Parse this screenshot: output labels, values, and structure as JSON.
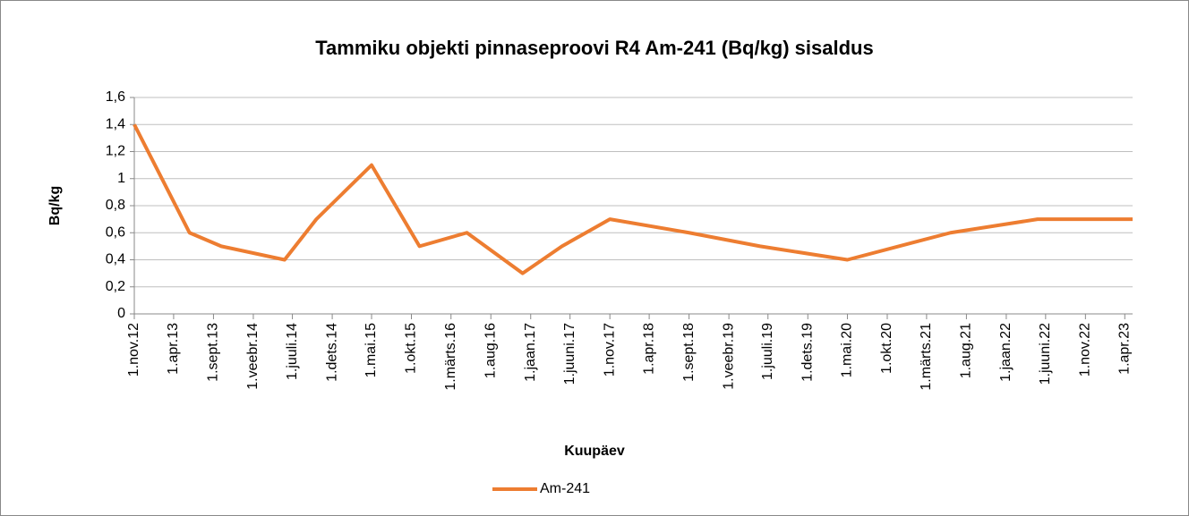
{
  "chart_data": {
    "type": "line",
    "title": "Tammiku objekti pinnaseproovi R4 Am-241 (Bq/kg) sisaldus",
    "xlabel": "Kuupäev",
    "ylabel": "Bq/kg",
    "x": [
      "2012-11-01",
      "2013-06-01",
      "2013-10-01",
      "2014-06-01",
      "2014-10-01",
      "2015-05-01",
      "2015-11-01",
      "2016-05-01",
      "2016-12-01",
      "2017-05-01",
      "2017-11-01",
      "2018-09-01",
      "2019-06-01",
      "2020-05-01",
      "2021-06-01",
      "2022-05-01",
      "2023-05-01"
    ],
    "series": [
      {
        "name": "Am-241",
        "color": "#ed7d31",
        "values": [
          1.4,
          0.6,
          0.5,
          0.4,
          0.7,
          1.1,
          0.5,
          0.6,
          0.3,
          0.5,
          0.7,
          0.6,
          0.5,
          0.4,
          0.6,
          0.7,
          0.7
        ]
      }
    ],
    "xlim": [
      "2012-11-01",
      "2023-05-01"
    ],
    "xticks": [
      {
        "value": "2012-11-01",
        "label": "1.nov.12"
      },
      {
        "value": "2013-04-01",
        "label": "1.apr.13"
      },
      {
        "value": "2013-09-01",
        "label": "1.sept.13"
      },
      {
        "value": "2014-02-01",
        "label": "1.veebr.14"
      },
      {
        "value": "2014-07-01",
        "label": "1.juuli.14"
      },
      {
        "value": "2014-12-01",
        "label": "1.dets.14"
      },
      {
        "value": "2015-05-01",
        "label": "1.mai.15"
      },
      {
        "value": "2015-10-01",
        "label": "1.okt.15"
      },
      {
        "value": "2016-03-01",
        "label": "1.märts.16"
      },
      {
        "value": "2016-08-01",
        "label": "1.aug.16"
      },
      {
        "value": "2017-01-01",
        "label": "1.jaan.17"
      },
      {
        "value": "2017-06-01",
        "label": "1.juuni.17"
      },
      {
        "value": "2017-11-01",
        "label": "1.nov.17"
      },
      {
        "value": "2018-04-01",
        "label": "1.apr.18"
      },
      {
        "value": "2018-09-01",
        "label": "1.sept.18"
      },
      {
        "value": "2019-02-01",
        "label": "1.veebr.19"
      },
      {
        "value": "2019-07-01",
        "label": "1.juuli.19"
      },
      {
        "value": "2019-12-01",
        "label": "1.dets.19"
      },
      {
        "value": "2020-05-01",
        "label": "1.mai.20"
      },
      {
        "value": "2020-10-01",
        "label": "1.okt.20"
      },
      {
        "value": "2021-03-01",
        "label": "1.märts.21"
      },
      {
        "value": "2021-08-01",
        "label": "1.aug.21"
      },
      {
        "value": "2022-01-01",
        "label": "1.jaan.22"
      },
      {
        "value": "2022-06-01",
        "label": "1.juuni.22"
      },
      {
        "value": "2022-11-01",
        "label": "1.nov.22"
      },
      {
        "value": "2023-04-01",
        "label": "1.apr.23"
      }
    ],
    "ylim": [
      0,
      1.6
    ],
    "yticks": [
      0,
      {
        "value": 0.2,
        "label": "0,2"
      },
      {
        "value": 0.4,
        "label": "0,4"
      },
      {
        "value": 0.6,
        "label": "0,6"
      },
      {
        "value": 0.8,
        "label": "0,8"
      },
      1,
      {
        "value": 1.2,
        "label": "1,2"
      },
      {
        "value": 1.4,
        "label": "1,4"
      },
      {
        "value": 1.6,
        "label": "1,6"
      }
    ],
    "grid": true,
    "legend": "bottom"
  }
}
